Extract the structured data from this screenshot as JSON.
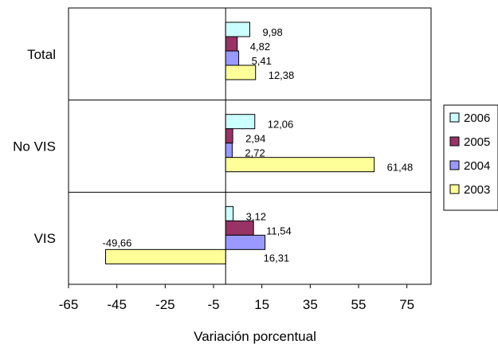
{
  "chart_data": {
    "type": "bar",
    "orientation": "horizontal",
    "title": "",
    "xlabel": "Variación porcentual",
    "ylabel": "",
    "xlim": [
      -65,
      85
    ],
    "xticks": [
      -65,
      -45,
      -25,
      -5,
      15,
      35,
      55,
      75
    ],
    "categories": [
      "Total",
      "No VIS",
      "VIS"
    ],
    "grid": false,
    "legend_position": "right",
    "series": [
      {
        "name": "2006",
        "color": "#ccffff",
        "values": [
          9.98,
          12.06,
          3.12
        ],
        "labels": [
          "9,98",
          "12,06",
          "3,12"
        ]
      },
      {
        "name": "2005",
        "color": "#993366",
        "values": [
          4.82,
          2.94,
          11.54
        ],
        "labels": [
          "4,82",
          "2,94",
          "11,54"
        ]
      },
      {
        "name": "2004",
        "color": "#9999ff",
        "values": [
          5.41,
          2.72,
          16.31
        ],
        "labels": [
          "5,41",
          "2,72",
          "16,31"
        ]
      },
      {
        "name": "2003",
        "color": "#ffff99",
        "values": [
          12.38,
          61.48,
          -49.66
        ],
        "labels": [
          "12,38",
          "61,48",
          "-49,66"
        ]
      }
    ]
  }
}
